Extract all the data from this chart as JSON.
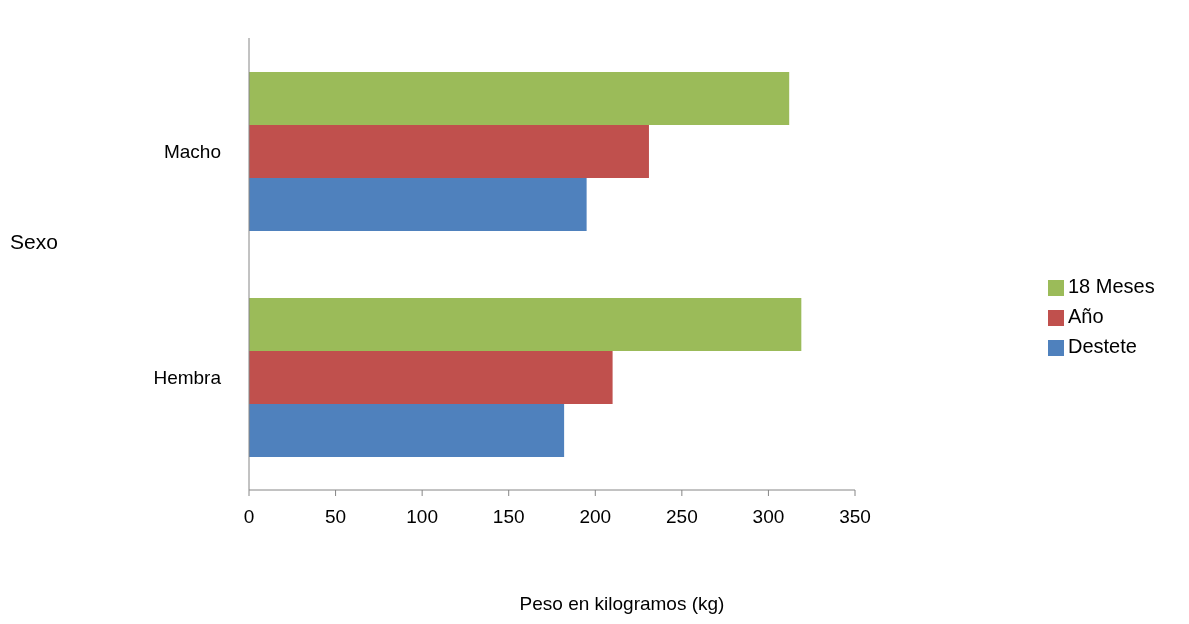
{
  "chart_data": {
    "type": "bar",
    "orientation": "horizontal",
    "xlabel": "Peso en kilogramos (kg)",
    "ylabel": "Sexo",
    "categories": [
      "Macho",
      "Hembra"
    ],
    "series": [
      {
        "name": "18 Meses",
        "color": "#9bbb59",
        "values": [
          312,
          319
        ]
      },
      {
        "name": "Año",
        "color": "#c0504d",
        "values": [
          231,
          210
        ]
      },
      {
        "name": "Destete",
        "color": "#4f81bd",
        "values": [
          195,
          182
        ]
      }
    ],
    "xlim": [
      0,
      350
    ],
    "xticks": [
      0,
      50,
      100,
      150,
      200,
      250,
      300,
      350
    ],
    "grid": false,
    "legend": "right"
  }
}
